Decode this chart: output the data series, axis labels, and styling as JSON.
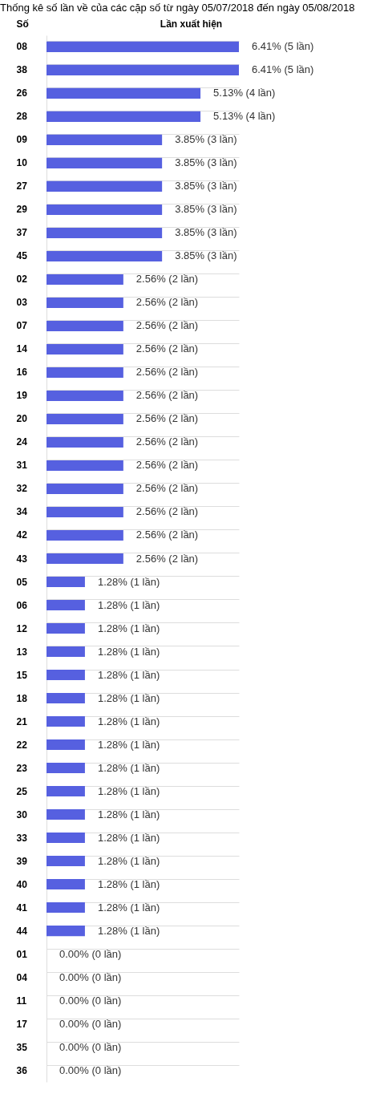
{
  "chart_data": {
    "type": "bar",
    "orientation": "horizontal",
    "title": "Thống kê số lần về của các cặp số từ ngày 05/07/2018 đến ngày 05/08/2018",
    "ylabel": "Số",
    "xlabel": "Lần xuất hiện",
    "tick_labels": "y",
    "grid": "y",
    "categories": [
      "08",
      "38",
      "26",
      "28",
      "09",
      "10",
      "27",
      "29",
      "37",
      "45",
      "02",
      "03",
      "07",
      "14",
      "16",
      "19",
      "20",
      "24",
      "31",
      "32",
      "34",
      "42",
      "43",
      "05",
      "06",
      "12",
      "13",
      "15",
      "18",
      "21",
      "22",
      "23",
      "25",
      "30",
      "33",
      "39",
      "40",
      "41",
      "44",
      "01",
      "04",
      "11",
      "17",
      "35",
      "36"
    ],
    "values": [
      6.41,
      6.41,
      5.13,
      5.13,
      3.85,
      3.85,
      3.85,
      3.85,
      3.85,
      3.85,
      2.56,
      2.56,
      2.56,
      2.56,
      2.56,
      2.56,
      2.56,
      2.56,
      2.56,
      2.56,
      2.56,
      2.56,
      2.56,
      1.28,
      1.28,
      1.28,
      1.28,
      1.28,
      1.28,
      1.28,
      1.28,
      1.28,
      1.28,
      1.28,
      1.28,
      1.28,
      1.28,
      1.28,
      1.28,
      0,
      0,
      0,
      0,
      0,
      0
    ],
    "value_labels": [
      "6.41% (5 lần)",
      "6.41% (5 lần)",
      "5.13% (4 lần)",
      "5.13% (4 lần)",
      "3.85% (3 lần)",
      "3.85% (3 lần)",
      "3.85% (3 lần)",
      "3.85% (3 lần)",
      "3.85% (3 lần)",
      "3.85% (3 lần)",
      "2.56% (2 lần)",
      "2.56% (2 lần)",
      "2.56% (2 lần)",
      "2.56% (2 lần)",
      "2.56% (2 lần)",
      "2.56% (2 lần)",
      "2.56% (2 lần)",
      "2.56% (2 lần)",
      "2.56% (2 lần)",
      "2.56% (2 lần)",
      "2.56% (2 lần)",
      "2.56% (2 lần)",
      "2.56% (2 lần)",
      "1.28% (1 lần)",
      "1.28% (1 lần)",
      "1.28% (1 lần)",
      "1.28% (1 lần)",
      "1.28% (1 lần)",
      "1.28% (1 lần)",
      "1.28% (1 lần)",
      "1.28% (1 lần)",
      "1.28% (1 lần)",
      "1.28% (1 lần)",
      "1.28% (1 lần)",
      "1.28% (1 lần)",
      "1.28% (1 lần)",
      "1.28% (1 lần)",
      "1.28% (1 lần)",
      "1.28% (1 lần)",
      "0.00% (0 lần)",
      "0.00% (0 lần)",
      "0.00% (0 lần)",
      "0.00% (0 lần)",
      "0.00% (0 lần)",
      "0.00% (0 lần)"
    ],
    "color": "#5660e0"
  }
}
